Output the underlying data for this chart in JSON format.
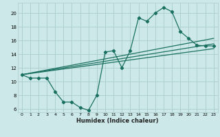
{
  "title": "",
  "xlabel": "Humidex (Indice chaleur)",
  "bg_color": "#cce8e8",
  "grid_color": "#aacccc",
  "line_color": "#1a7060",
  "xlim": [
    -0.5,
    23.5
  ],
  "ylim": [
    5.5,
    21.5
  ],
  "yticks": [
    6,
    8,
    10,
    12,
    14,
    16,
    18,
    20
  ],
  "xticks": [
    0,
    1,
    2,
    3,
    4,
    5,
    6,
    7,
    8,
    9,
    10,
    11,
    12,
    13,
    14,
    15,
    16,
    17,
    18,
    19,
    20,
    21,
    22,
    23
  ],
  "series1_x": [
    0,
    1,
    2,
    3,
    4,
    5,
    6,
    7,
    8,
    9,
    10,
    11,
    12,
    13,
    14,
    15,
    16,
    17,
    18,
    19,
    20,
    21,
    22,
    23
  ],
  "series1_y": [
    11.0,
    10.5,
    10.5,
    10.5,
    8.5,
    7.0,
    7.0,
    6.2,
    5.8,
    8.0,
    14.3,
    14.5,
    12.0,
    14.5,
    19.3,
    18.8,
    20.0,
    20.8,
    20.2,
    17.3,
    16.3,
    15.3,
    15.2,
    15.2
  ],
  "series2_x": [
    0,
    23
  ],
  "series2_y": [
    11.0,
    16.3
  ],
  "series3_x": [
    0,
    23
  ],
  "series3_y": [
    11.0,
    15.5
  ],
  "series4_x": [
    0,
    23
  ],
  "series4_y": [
    11.0,
    14.8
  ]
}
